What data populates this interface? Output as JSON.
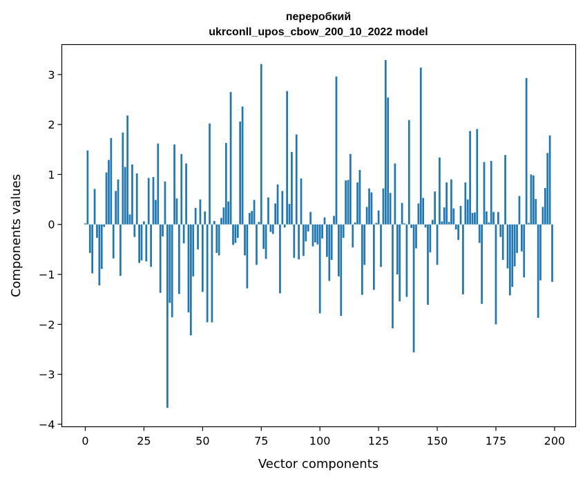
{
  "chart_data": {
    "type": "bar",
    "title_line1": "переробкий",
    "title_line2": "ukrconll_upos_cbow_200_10_2022 model",
    "xlabel": "Vector components",
    "ylabel": "Components values",
    "xlim": [
      -10,
      209
    ],
    "ylim": [
      -4.05,
      3.6
    ],
    "xticks": [
      0,
      25,
      50,
      75,
      100,
      125,
      150,
      175,
      200
    ],
    "xtick_labels": [
      "0",
      "25",
      "50",
      "75",
      "100",
      "125",
      "150",
      "175",
      "200"
    ],
    "yticks": [
      -4,
      -3,
      -2,
      -1,
      0,
      1,
      2,
      3
    ],
    "ytick_labels": [
      "−4",
      "−3",
      "−2",
      "−1",
      "0",
      "1",
      "2",
      "3"
    ],
    "grid": false,
    "bar_color": "#1f77b4",
    "x": [
      0,
      1,
      2,
      3,
      4,
      5,
      6,
      7,
      8,
      9,
      10,
      11,
      12,
      13,
      14,
      15,
      16,
      17,
      18,
      19,
      20,
      21,
      22,
      23,
      24,
      25,
      26,
      27,
      28,
      29,
      30,
      31,
      32,
      33,
      34,
      35,
      36,
      37,
      38,
      39,
      40,
      41,
      42,
      43,
      44,
      45,
      46,
      47,
      48,
      49,
      50,
      51,
      52,
      53,
      54,
      55,
      56,
      57,
      58,
      59,
      60,
      61,
      62,
      63,
      64,
      65,
      66,
      67,
      68,
      69,
      70,
      71,
      72,
      73,
      74,
      75,
      76,
      77,
      78,
      79,
      80,
      81,
      82,
      83,
      84,
      85,
      86,
      87,
      88,
      89,
      90,
      91,
      92,
      93,
      94,
      95,
      96,
      97,
      98,
      99,
      100,
      101,
      102,
      103,
      104,
      105,
      106,
      107,
      108,
      109,
      110,
      111,
      112,
      113,
      114,
      115,
      116,
      117,
      118,
      119,
      120,
      121,
      122,
      123,
      124,
      125,
      126,
      127,
      128,
      129,
      130,
      131,
      132,
      133,
      134,
      135,
      136,
      137,
      138,
      139,
      140,
      141,
      142,
      143,
      144,
      145,
      146,
      147,
      148,
      149,
      150,
      151,
      152,
      153,
      154,
      155,
      156,
      157,
      158,
      159,
      160,
      161,
      162,
      163,
      164,
      165,
      166,
      167,
      168,
      169,
      170,
      171,
      172,
      173,
      174,
      175,
      176,
      177,
      178,
      179,
      180,
      181,
      182,
      183,
      184,
      185,
      186,
      187,
      188,
      189,
      190,
      191,
      192,
      193,
      194,
      195,
      196,
      197,
      198,
      199
    ],
    "values": [
      0.02,
      1.48,
      -0.57,
      -0.98,
      0.71,
      -0.27,
      -1.22,
      -0.89,
      -0.05,
      1.04,
      1.29,
      1.73,
      -0.68,
      0.67,
      0.9,
      -1.03,
      1.84,
      1.15,
      2.18,
      0.2,
      1.2,
      -0.25,
      1.02,
      -0.77,
      -0.72,
      0.06,
      -0.74,
      0.93,
      -0.85,
      0.95,
      0.49,
      1.62,
      -1.37,
      -0.24,
      0.86,
      -3.67,
      -1.57,
      -1.86,
      1.6,
      0.52,
      -1.39,
      1.41,
      -0.38,
      1.22,
      -1.76,
      -2.22,
      -1.04,
      0.33,
      -0.5,
      0.5,
      -1.35,
      0.26,
      -1.96,
      2.02,
      -1.96,
      0.07,
      -0.57,
      -0.62,
      0.13,
      0.34,
      1.63,
      0.46,
      2.65,
      -0.41,
      -0.37,
      -0.27,
      2.06,
      2.36,
      -0.62,
      -1.28,
      0.23,
      0.27,
      0.49,
      -0.81,
      0.05,
      3.21,
      -0.49,
      -0.69,
      0.54,
      -0.15,
      -0.19,
      0.42,
      0.8,
      -1.38,
      0.67,
      -0.06,
      2.67,
      0.41,
      1.45,
      -0.67,
      1.8,
      -0.7,
      0.92,
      -0.63,
      -0.34,
      -0.14,
      0.25,
      -0.44,
      -0.36,
      -0.4,
      -1.78,
      -0.28,
      0.14,
      -0.65,
      -1.13,
      -0.71,
      0.17,
      2.96,
      -1.04,
      -1.83,
      -0.27,
      0.88,
      0.89,
      1.41,
      -0.46,
      0.04,
      0.84,
      1.09,
      -1.41,
      -0.81,
      0.35,
      0.72,
      0.64,
      -1.31,
      0.03,
      0.28,
      -0.85,
      0.72,
      3.29,
      2.54,
      0.63,
      -2.08,
      1.22,
      -1.0,
      -1.54,
      0.43,
      0.02,
      -1.45,
      2.09,
      -0.07,
      -2.56,
      -0.48,
      0.42,
      3.14,
      0.53,
      -0.06,
      -1.61,
      -0.56,
      0.09,
      0.66,
      -0.81,
      1.34,
      0.06,
      0.34,
      0.84,
      0.05,
      0.9,
      0.32,
      -0.1,
      -0.31,
      0.37,
      -1.4,
      0.84,
      0.5,
      1.87,
      0.23,
      0.24,
      1.91,
      -0.37,
      -1.59,
      1.25,
      0.26,
      0.04,
      1.27,
      0.25,
      -2.0,
      0.25,
      -0.25,
      -0.71,
      1.39,
      -0.88,
      -1.42,
      -1.25,
      -0.84,
      -0.57,
      0.57,
      -0.54,
      -1.06,
      2.93,
      0.03,
      1.0,
      0.98,
      0.51,
      -1.87,
      -1.12,
      0.35,
      0.73,
      1.43,
      1.78,
      -1.15
    ]
  }
}
